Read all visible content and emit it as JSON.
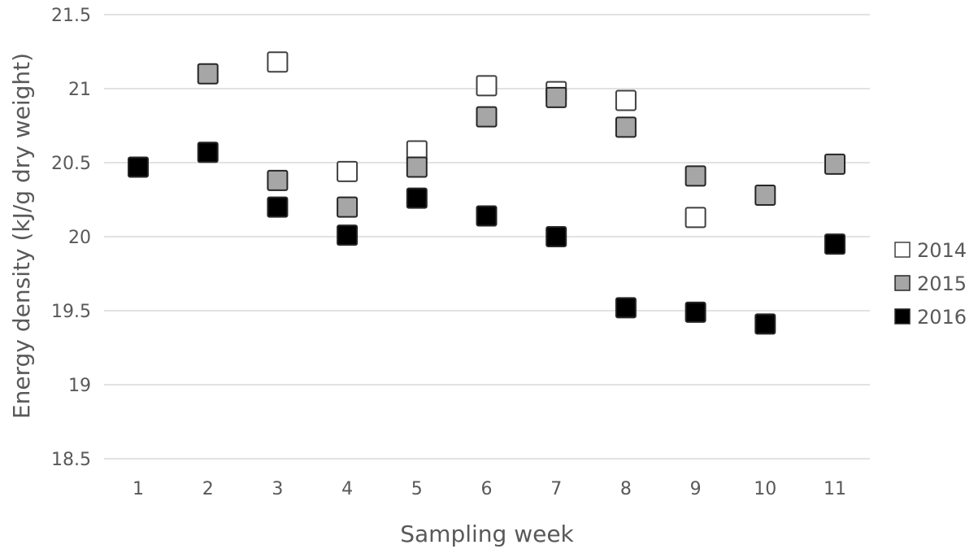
{
  "chart_data": {
    "type": "scatter",
    "xlabel": "Sampling week",
    "ylabel": "Energy density (kJ/g dry weight)",
    "categories": [
      "1",
      "2",
      "3",
      "4",
      "5",
      "6",
      "7",
      "8",
      "9",
      "10",
      "11"
    ],
    "ylim": [
      18.5,
      21.5
    ],
    "yticks": [
      "18.5",
      "19",
      "19.5",
      "20",
      "20.5",
      "21",
      "21.5"
    ],
    "grid": true,
    "legend_position": "right",
    "series": [
      {
        "name": "2014",
        "color": "#ffffff",
        "points": [
          {
            "x": 3,
            "y": 21.18
          },
          {
            "x": 4,
            "y": 20.44
          },
          {
            "x": 5,
            "y": 20.58
          },
          {
            "x": 6,
            "y": 21.02
          },
          {
            "x": 7,
            "y": 20.98
          },
          {
            "x": 8,
            "y": 20.92
          },
          {
            "x": 9,
            "y": 20.13
          }
        ]
      },
      {
        "name": "2015",
        "color": "#a6a6a6",
        "points": [
          {
            "x": 2,
            "y": 21.1
          },
          {
            "x": 3,
            "y": 20.38
          },
          {
            "x": 4,
            "y": 20.2
          },
          {
            "x": 5,
            "y": 20.47
          },
          {
            "x": 6,
            "y": 20.81
          },
          {
            "x": 7,
            "y": 20.94
          },
          {
            "x": 8,
            "y": 20.74
          },
          {
            "x": 9,
            "y": 20.41
          },
          {
            "x": 10,
            "y": 20.28
          },
          {
            "x": 11,
            "y": 20.49
          }
        ]
      },
      {
        "name": "2016",
        "color": "#000000",
        "points": [
          {
            "x": 1,
            "y": 20.47
          },
          {
            "x": 2,
            "y": 20.57
          },
          {
            "x": 3,
            "y": 20.2
          },
          {
            "x": 4,
            "y": 20.01
          },
          {
            "x": 5,
            "y": 20.26
          },
          {
            "x": 6,
            "y": 20.14
          },
          {
            "x": 7,
            "y": 20.0
          },
          {
            "x": 8,
            "y": 19.52
          },
          {
            "x": 9,
            "y": 19.49
          },
          {
            "x": 10,
            "y": 19.41
          },
          {
            "x": 11,
            "y": 19.95
          }
        ]
      }
    ]
  }
}
